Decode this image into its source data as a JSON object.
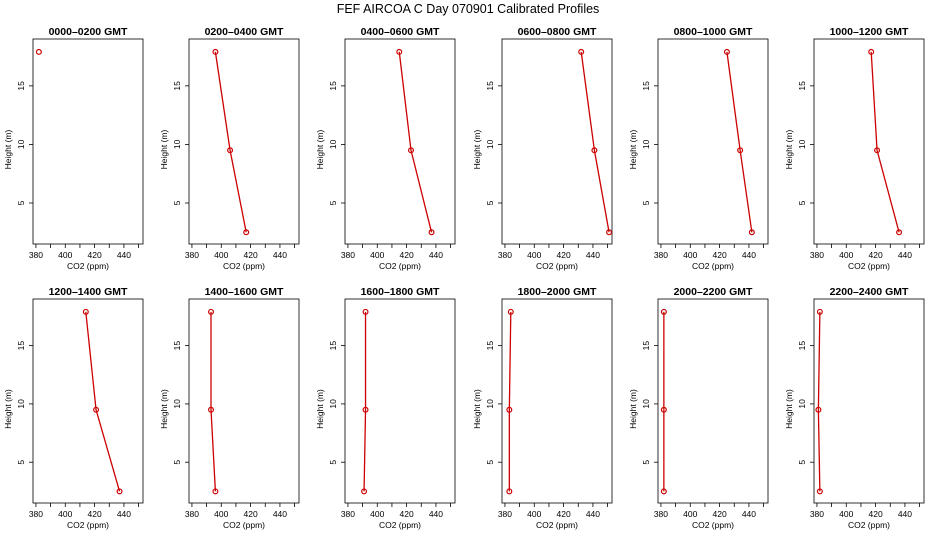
{
  "title": "FEF AIRCOA C  Day 070901  Calibrated Profiles",
  "colors": {
    "series": "#cc0000",
    "axis": "#000000",
    "background": "#ffffff"
  },
  "chart_data": [
    {
      "type": "line",
      "title": "0000–0200 GMT",
      "xlabel": "CO2 (ppm)",
      "ylabel": "Height (m)",
      "xlim": [
        378,
        453
      ],
      "ylim": [
        1.5,
        19
      ],
      "xticks": [
        "380",
        "400",
        "420",
        "440"
      ],
      "yticks": [
        "5",
        "10",
        "15"
      ],
      "series": [
        {
          "points": [
            {
              "x": 382,
              "y": 17.9
            }
          ]
        }
      ]
    },
    {
      "type": "line",
      "title": "0200–0400 GMT",
      "xlabel": "CO2 (ppm)",
      "ylabel": "Height (m)",
      "xlim": [
        378,
        453
      ],
      "ylim": [
        1.5,
        19
      ],
      "xticks": [
        "380",
        "400",
        "420",
        "440"
      ],
      "yticks": [
        "5",
        "10",
        "15"
      ],
      "series": [
        {
          "points": [
            {
              "x": 396,
              "y": 17.9
            },
            {
              "x": 406,
              "y": 9.5
            },
            {
              "x": 417,
              "y": 2.5
            }
          ]
        }
      ]
    },
    {
      "type": "line",
      "title": "0400–0600 GMT",
      "xlabel": "CO2 (ppm)",
      "ylabel": "Height (m)",
      "xlim": [
        378,
        453
      ],
      "ylim": [
        1.5,
        19
      ],
      "xticks": [
        "380",
        "400",
        "420",
        "440"
      ],
      "yticks": [
        "5",
        "10",
        "15"
      ],
      "series": [
        {
          "points": [
            {
              "x": 415,
              "y": 17.9
            },
            {
              "x": 423,
              "y": 9.5
            },
            {
              "x": 437,
              "y": 2.5
            }
          ]
        }
      ]
    },
    {
      "type": "line",
      "title": "0600–0800 GMT",
      "xlabel": "CO2 (ppm)",
      "ylabel": "Height (m)",
      "xlim": [
        378,
        453
      ],
      "ylim": [
        1.5,
        19
      ],
      "xticks": [
        "380",
        "400",
        "420",
        "440"
      ],
      "yticks": [
        "5",
        "10",
        "15"
      ],
      "series": [
        {
          "points": [
            {
              "x": 432,
              "y": 17.9
            },
            {
              "x": 441,
              "y": 9.5
            },
            {
              "x": 451,
              "y": 2.5
            }
          ]
        }
      ]
    },
    {
      "type": "line",
      "title": "0800–1000 GMT",
      "xlabel": "CO2 (ppm)",
      "ylabel": "Height (m)",
      "xlim": [
        378,
        453
      ],
      "ylim": [
        1.5,
        19
      ],
      "xticks": [
        "380",
        "400",
        "420",
        "440"
      ],
      "yticks": [
        "5",
        "10",
        "15"
      ],
      "series": [
        {
          "points": [
            {
              "x": 425,
              "y": 17.9
            },
            {
              "x": 434,
              "y": 9.5
            },
            {
              "x": 442,
              "y": 2.5
            }
          ]
        }
      ]
    },
    {
      "type": "line",
      "title": "1000–1200 GMT",
      "xlabel": "CO2 (ppm)",
      "ylabel": "Height (m)",
      "xlim": [
        378,
        453
      ],
      "ylim": [
        1.5,
        19
      ],
      "xticks": [
        "380",
        "400",
        "420",
        "440"
      ],
      "yticks": [
        "5",
        "10",
        "15"
      ],
      "series": [
        {
          "points": [
            {
              "x": 417,
              "y": 17.9
            },
            {
              "x": 421,
              "y": 9.5
            },
            {
              "x": 436,
              "y": 2.5
            }
          ]
        }
      ]
    },
    {
      "type": "line",
      "title": "1200–1400 GMT",
      "xlabel": "CO2 (ppm)",
      "ylabel": "Height (m)",
      "xlim": [
        378,
        453
      ],
      "ylim": [
        1.5,
        19
      ],
      "xticks": [
        "380",
        "400",
        "420",
        "440"
      ],
      "yticks": [
        "5",
        "10",
        "15"
      ],
      "series": [
        {
          "points": [
            {
              "x": 414,
              "y": 17.9
            },
            {
              "x": 421,
              "y": 9.5
            },
            {
              "x": 437,
              "y": 2.5
            }
          ]
        }
      ]
    },
    {
      "type": "line",
      "title": "1400–1600 GMT",
      "xlabel": "CO2 (ppm)",
      "ylabel": "Height (m)",
      "xlim": [
        378,
        453
      ],
      "ylim": [
        1.5,
        19
      ],
      "xticks": [
        "380",
        "400",
        "420",
        "440"
      ],
      "yticks": [
        "5",
        "10",
        "15"
      ],
      "series": [
        {
          "points": [
            {
              "x": 393,
              "y": 17.9
            },
            {
              "x": 393,
              "y": 9.5
            },
            {
              "x": 396,
              "y": 2.5
            }
          ]
        }
      ]
    },
    {
      "type": "line",
      "title": "1600–1800 GMT",
      "xlabel": "CO2 (ppm)",
      "ylabel": "Height (m)",
      "xlim": [
        378,
        453
      ],
      "ylim": [
        1.5,
        19
      ],
      "xticks": [
        "380",
        "400",
        "420",
        "440"
      ],
      "yticks": [
        "5",
        "10",
        "15"
      ],
      "series": [
        {
          "points": [
            {
              "x": 392,
              "y": 17.9
            },
            {
              "x": 392,
              "y": 9.5
            },
            {
              "x": 391,
              "y": 2.5
            }
          ]
        }
      ]
    },
    {
      "type": "line",
      "title": "1800–2000 GMT",
      "xlabel": "CO2 (ppm)",
      "ylabel": "Height (m)",
      "xlim": [
        378,
        453
      ],
      "ylim": [
        1.5,
        19
      ],
      "xticks": [
        "380",
        "400",
        "420",
        "440"
      ],
      "yticks": [
        "5",
        "10",
        "15"
      ],
      "series": [
        {
          "points": [
            {
              "x": 384,
              "y": 17.9
            },
            {
              "x": 383,
              "y": 9.5
            },
            {
              "x": 383,
              "y": 2.5
            }
          ]
        }
      ]
    },
    {
      "type": "line",
      "title": "2000–2200 GMT",
      "xlabel": "CO2 (ppm)",
      "ylabel": "Height (m)",
      "xlim": [
        378,
        453
      ],
      "ylim": [
        1.5,
        19
      ],
      "xticks": [
        "380",
        "400",
        "420",
        "440"
      ],
      "yticks": [
        "5",
        "10",
        "15"
      ],
      "series": [
        {
          "points": [
            {
              "x": 382,
              "y": 17.9
            },
            {
              "x": 382,
              "y": 9.5
            },
            {
              "x": 382,
              "y": 2.5
            }
          ]
        }
      ]
    },
    {
      "type": "line",
      "title": "2200–2400 GMT",
      "xlabel": "CO2 (ppm)",
      "ylabel": "Height (m)",
      "xlim": [
        378,
        453
      ],
      "ylim": [
        1.5,
        19
      ],
      "xticks": [
        "380",
        "400",
        "420",
        "440"
      ],
      "yticks": [
        "5",
        "10",
        "15"
      ],
      "series": [
        {
          "points": [
            {
              "x": 382,
              "y": 17.9
            },
            {
              "x": 381,
              "y": 9.5
            },
            {
              "x": 382,
              "y": 2.5
            }
          ]
        }
      ]
    }
  ]
}
